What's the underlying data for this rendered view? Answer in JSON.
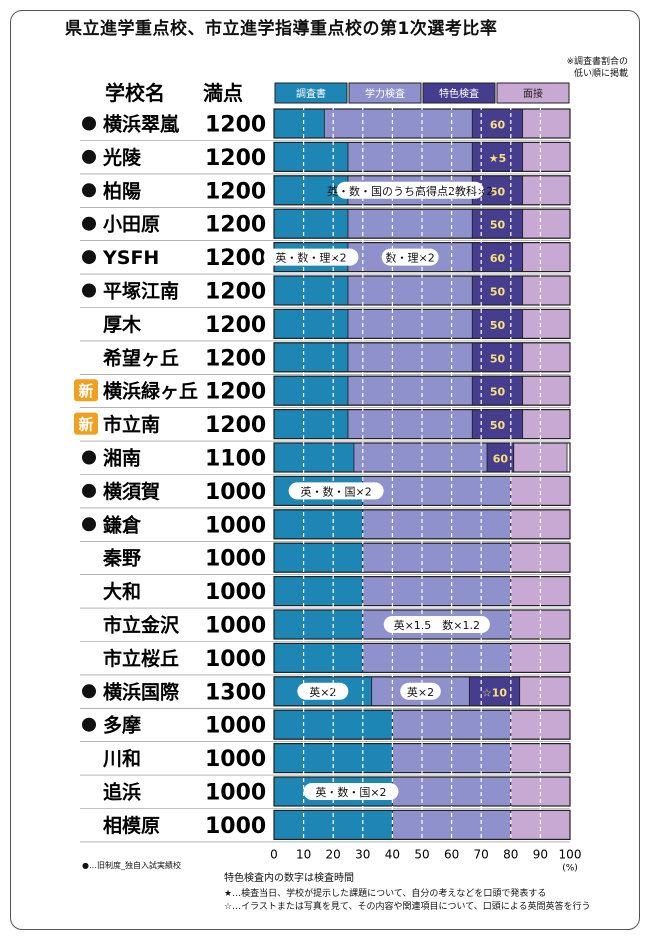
{
  "title": "県立進学重点校、市立進学指導重点校の第1次選考比率",
  "note_lines": [
    "※調査書割合の",
    "低い順に掲載"
  ],
  "headers": {
    "school": "学校名",
    "score": "満点"
  },
  "legend_bullet": "●",
  "legend_text": "…旧制度_独自入試実績校",
  "new_badge_text": "新",
  "footer": {
    "line0": "特色検査内の数字は検査時間",
    "line1": "★…検査当日、学校が提示した課題について、自分の考えなどを口頭で発表する",
    "line2": "☆…イラストまたは写真を見て、その内容や関連項目について、口頭による英問英答を行う"
  },
  "colors": {
    "chosa": "#1d86b5",
    "gakuryoku": "#8e91cc",
    "tokushoku": "#473d8e",
    "mensetsu": "#c8a9d3",
    "new_badge": "#f0a020",
    "highlight": "#f6e27a"
  },
  "chart_data": {
    "type": "bar",
    "stacked": true,
    "orientation": "horizontal",
    "unit": "(%)",
    "xlim": [
      0,
      100
    ],
    "x_ticks": [
      "0",
      "10",
      "20",
      "30",
      "40",
      "50",
      "60",
      "70",
      "80",
      "90",
      "100"
    ],
    "components": [
      {
        "key": "chosa",
        "name": "調査書"
      },
      {
        "key": "gakuryoku",
        "name": "学力検査"
      },
      {
        "key": "tokushoku",
        "name": "特色検査"
      },
      {
        "key": "mensetsu",
        "name": "面接"
      }
    ],
    "rows": [
      {
        "school": "横浜翠嵐",
        "bullet": true,
        "new": false,
        "total": "1200",
        "values": [
          17,
          50,
          17,
          16
        ],
        "tokushoku_label": "60",
        "note": "",
        "note2": ""
      },
      {
        "school": "光陵",
        "bullet": true,
        "new": false,
        "total": "1200",
        "values": [
          25,
          42,
          17,
          16
        ],
        "tokushoku_label": "★5",
        "note": "",
        "note2": ""
      },
      {
        "school": "柏陽",
        "bullet": true,
        "new": false,
        "total": "1200",
        "values": [
          25,
          42,
          17,
          16
        ],
        "tokushoku_label": "50",
        "note": "",
        "note2": "英・数・国のうち高得点2教科×2"
      },
      {
        "school": "小田原",
        "bullet": true,
        "new": false,
        "total": "1200",
        "values": [
          25,
          42,
          17,
          16
        ],
        "tokushoku_label": "50",
        "note": "",
        "note2": ""
      },
      {
        "school": "YSFH",
        "bullet": true,
        "new": false,
        "total": "1200",
        "values": [
          25,
          42,
          17,
          16
        ],
        "tokushoku_label": "60",
        "note": "英・数・理×2",
        "note2": "数・理×2"
      },
      {
        "school": "平塚江南",
        "bullet": true,
        "new": false,
        "total": "1200",
        "values": [
          25,
          42,
          17,
          16
        ],
        "tokushoku_label": "50",
        "note": "",
        "note2": ""
      },
      {
        "school": "厚木",
        "bullet": false,
        "new": false,
        "total": "1200",
        "values": [
          25,
          42,
          17,
          16
        ],
        "tokushoku_label": "50",
        "note": "",
        "note2": ""
      },
      {
        "school": "希望ヶ丘",
        "bullet": false,
        "new": false,
        "total": "1200",
        "values": [
          25,
          42,
          17,
          16
        ],
        "tokushoku_label": "50",
        "note": "",
        "note2": ""
      },
      {
        "school": "横浜緑ヶ丘",
        "bullet": false,
        "new": true,
        "total": "1200",
        "values": [
          25,
          42,
          17,
          16
        ],
        "tokushoku_label": "50",
        "note": "",
        "note2": ""
      },
      {
        "school": "市立南",
        "bullet": false,
        "new": true,
        "total": "1200",
        "values": [
          25,
          42,
          17,
          16
        ],
        "tokushoku_label": "50",
        "note": "",
        "note2": ""
      },
      {
        "school": "湘南",
        "bullet": true,
        "new": false,
        "total": "1100",
        "values": [
          27,
          45,
          9,
          18
        ],
        "tokushoku_label": "60",
        "note": "",
        "note2": ""
      },
      {
        "school": "横須賀",
        "bullet": true,
        "new": false,
        "total": "1000",
        "values": [
          30,
          50,
          0,
          20
        ],
        "tokushoku_label": "",
        "note": "英・数・国×2",
        "note2": ""
      },
      {
        "school": "鎌倉",
        "bullet": true,
        "new": false,
        "total": "1000",
        "values": [
          30,
          50,
          0,
          20
        ],
        "tokushoku_label": "",
        "note": "",
        "note2": ""
      },
      {
        "school": "秦野",
        "bullet": false,
        "new": false,
        "total": "1000",
        "values": [
          30,
          50,
          0,
          20
        ],
        "tokushoku_label": "",
        "note": "",
        "note2": ""
      },
      {
        "school": "大和",
        "bullet": false,
        "new": false,
        "total": "1000",
        "values": [
          30,
          50,
          0,
          20
        ],
        "tokushoku_label": "",
        "note": "",
        "note2": ""
      },
      {
        "school": "市立金沢",
        "bullet": false,
        "new": false,
        "total": "1000",
        "values": [
          30,
          50,
          0,
          20
        ],
        "tokushoku_label": "",
        "note": "",
        "note2": "英×1.5　数×1.2"
      },
      {
        "school": "市立桜丘",
        "bullet": false,
        "new": false,
        "total": "1000",
        "values": [
          30,
          50,
          0,
          20
        ],
        "tokushoku_label": "",
        "note": "",
        "note2": ""
      },
      {
        "school": "横浜国際",
        "bullet": true,
        "new": false,
        "total": "1300",
        "values": [
          33,
          33,
          17,
          17
        ],
        "tokushoku_label": "☆10",
        "note": "英×2",
        "note2": "英×2"
      },
      {
        "school": "多摩",
        "bullet": true,
        "new": false,
        "total": "1000",
        "values": [
          40,
          40,
          0,
          20
        ],
        "tokushoku_label": "",
        "note": "",
        "note2": ""
      },
      {
        "school": "川和",
        "bullet": false,
        "new": false,
        "total": "1000",
        "values": [
          40,
          40,
          0,
          20
        ],
        "tokushoku_label": "",
        "note": "",
        "note2": ""
      },
      {
        "school": "追浜",
        "bullet": false,
        "new": false,
        "total": "1000",
        "values": [
          40,
          40,
          0,
          20
        ],
        "tokushoku_label": "",
        "note": "英・数・国×2",
        "note2": ""
      },
      {
        "school": "相模原",
        "bullet": false,
        "new": false,
        "total": "1000",
        "values": [
          40,
          40,
          0,
          20
        ],
        "tokushoku_label": "",
        "note": "",
        "note2": ""
      }
    ]
  }
}
